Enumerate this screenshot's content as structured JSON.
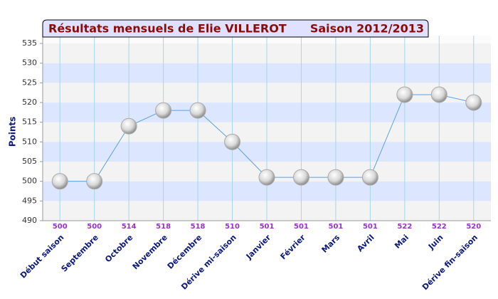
{
  "chart_data": {
    "type": "line",
    "title": "Résultats mensuels de  Elie VILLEROT",
    "subtitle": "Saison 2012/2013",
    "y_label": "Points",
    "categories": [
      "Début saison",
      "Septembre",
      "Octobre",
      "Novembre",
      "Décembre",
      "Dérive mi-saison",
      "Janvier",
      "Février",
      "Mars",
      "Avril",
      "Mai",
      "Juin",
      "Dérive fin-saison"
    ],
    "values": [
      500,
      500,
      514,
      518,
      518,
      510,
      501,
      501,
      501,
      501,
      522,
      522,
      520
    ],
    "color": "#5aa0e0",
    "ylim": [
      490,
      537
    ],
    "yticks": [
      490,
      495,
      500,
      505,
      510,
      515,
      520,
      525,
      530,
      535
    ],
    "grid": true
  }
}
